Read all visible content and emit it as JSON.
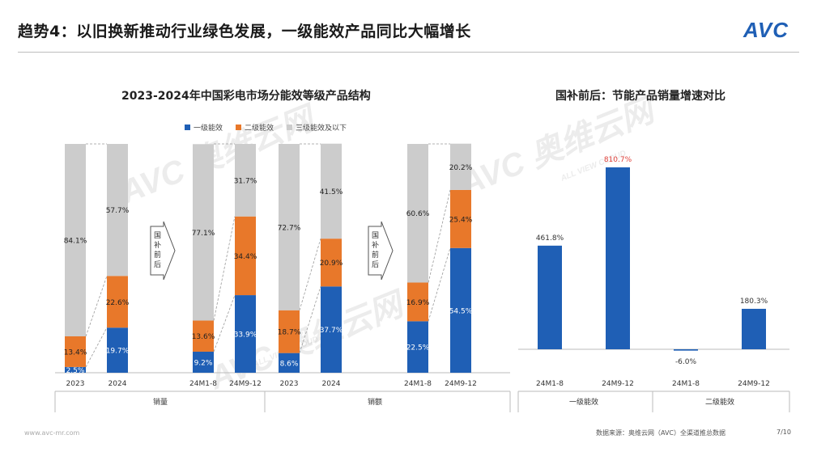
{
  "header": {
    "title": "趋势4：以旧换新推动行业绿色发展，一级能效产品同比大幅增长",
    "logo": "AVC"
  },
  "footer": {
    "site": "www.avc-mr.com",
    "source": "数据来源：奥维云网（AVC）全渠道推总数据",
    "page": "7/10"
  },
  "watermarks": [
    "AVC 奥维云网",
    "ALL VIEW CLOUD"
  ],
  "colors": {
    "level1": "#1f5fb5",
    "level2": "#e8782a",
    "level3": "#cccccc",
    "highlight": "#e0403a"
  },
  "chart_data": [
    {
      "type": "bar",
      "stacked": true,
      "title": "2023-2024年中国彩电市场分能效等级产品结构",
      "legend": [
        "一级能效",
        "二级能效",
        "三级能效及以下"
      ],
      "legend_position": "top",
      "groups": [
        {
          "name": "销量",
          "categories": [
            "2023",
            "2024",
            "24M1-8",
            "24M9-12"
          ],
          "series": [
            {
              "name": "一级能效",
              "values": [
                2.5,
                19.7,
                9.2,
                33.9
              ],
              "labels": [
                "2.5%",
                "19.7%",
                "9.2%",
                "33.9%"
              ]
            },
            {
              "name": "二级能效",
              "values": [
                13.4,
                22.6,
                13.6,
                34.4
              ],
              "labels": [
                "13.4%",
                "22.6%",
                "13.6%",
                "34.4%"
              ]
            },
            {
              "name": "三级能效及以下",
              "values": [
                84.1,
                57.7,
                77.1,
                31.7
              ],
              "labels": [
                "84.1%",
                "57.7%",
                "77.1%",
                "31.7%"
              ]
            }
          ]
        },
        {
          "name": "销额",
          "categories": [
            "2023",
            "2024",
            "24M1-8",
            "24M9-12"
          ],
          "series": [
            {
              "name": "一级能效",
              "values": [
                8.6,
                37.7,
                22.5,
                54.5
              ],
              "labels": [
                "8.6%",
                "37.7%",
                "22.5%",
                "54.5%"
              ]
            },
            {
              "name": "二级能效",
              "values": [
                18.7,
                20.9,
                16.9,
                25.4
              ],
              "labels": [
                "18.7%",
                "20.9%",
                "16.9%",
                "25.4%"
              ]
            },
            {
              "name": "三级能效及以下",
              "values": [
                72.7,
                41.5,
                60.6,
                20.2
              ],
              "labels": [
                "72.7%",
                "41.5%",
                "60.6%",
                "20.2%"
              ]
            }
          ]
        }
      ],
      "arrow_label": "国补前后",
      "ylim": [
        0,
        100
      ]
    },
    {
      "type": "bar",
      "title": "国补前后：节能产品销量增速对比",
      "groups": [
        {
          "name": "一级能效",
          "categories": [
            "24M1-8",
            "24M9-12"
          ],
          "values": [
            461.8,
            810.7
          ],
          "labels": [
            "461.8%",
            "810.7%"
          ]
        },
        {
          "name": "二级能效",
          "categories": [
            "24M1-8",
            "24M9-12"
          ],
          "values": [
            -6.0,
            180.3
          ],
          "labels": [
            "-6.0%",
            "180.3%"
          ]
        }
      ],
      "highlight_label": "810.7%"
    }
  ]
}
